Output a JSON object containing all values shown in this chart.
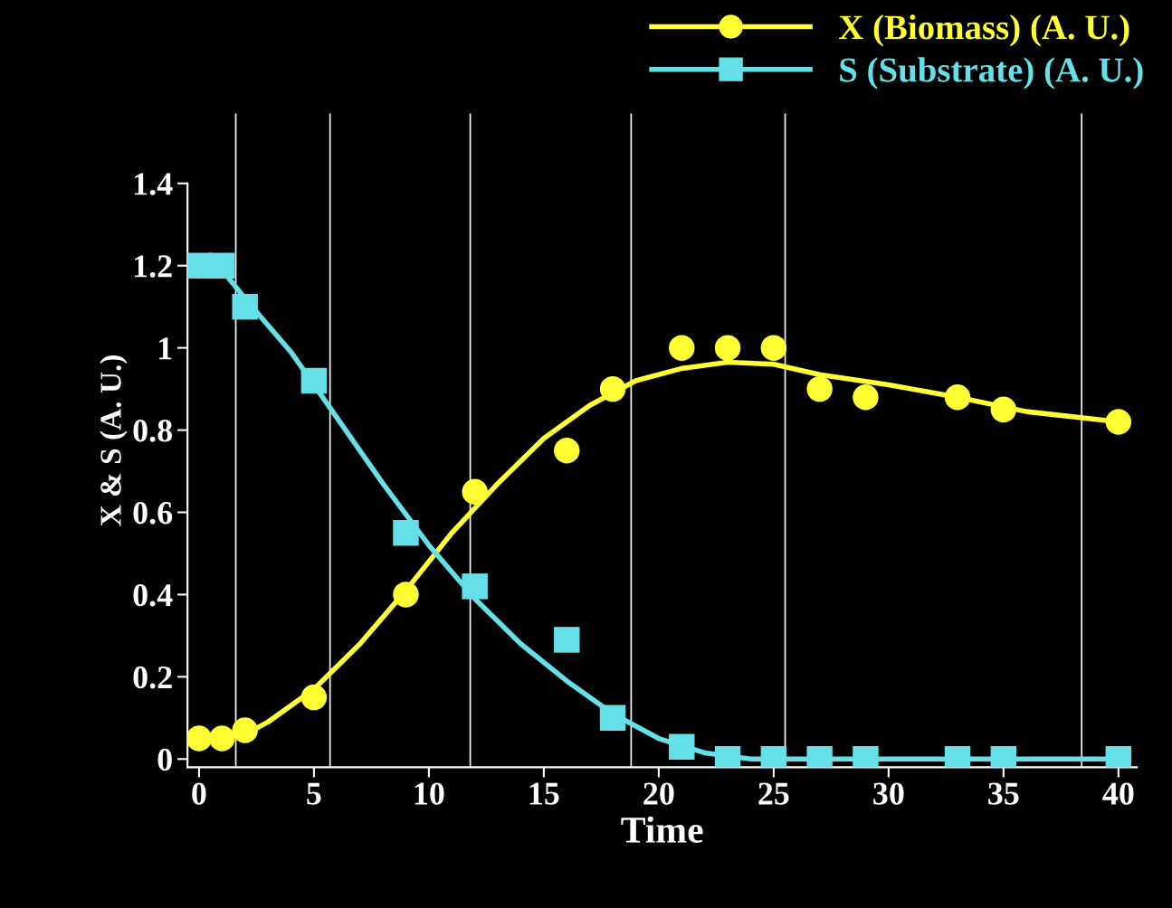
{
  "chart_data": {
    "type": "scatter",
    "xlabel": "Time",
    "ylabel": "X & S (A. U.)",
    "xlim": [
      -0.5,
      40.8
    ],
    "ylim": [
      -0.02,
      1.57
    ],
    "xticks": [
      0,
      5,
      10,
      15,
      20,
      25,
      30,
      35,
      40
    ],
    "yticks": [
      0,
      0.2,
      0.4,
      0.6,
      0.8,
      1,
      1.2,
      1.4
    ],
    "grid": false,
    "legend": "top",
    "series": [
      {
        "name": "X (Biomass) (A. U.)",
        "marker": "circle",
        "color": "#ffff33",
        "x": [
          0,
          1,
          2,
          5,
          9,
          12,
          16,
          18,
          21,
          23,
          25,
          27,
          29,
          33,
          35,
          40
        ],
        "values": [
          0.05,
          0.05,
          0.07,
          0.15,
          0.4,
          0.65,
          0.75,
          0.9,
          1.0,
          1.0,
          1.0,
          0.9,
          0.88,
          0.88,
          0.85,
          0.82
        ]
      },
      {
        "name": "S (Substrate) (A. U.)",
        "marker": "square",
        "color": "#66e0e8",
        "x": [
          0,
          1,
          2,
          5,
          9,
          12,
          16,
          18,
          21,
          23,
          25,
          27,
          29,
          33,
          35,
          40
        ],
        "values": [
          1.2,
          1.2,
          1.1,
          0.92,
          0.55,
          0.42,
          0.29,
          0.1,
          0.03,
          0,
          0,
          0,
          0,
          0,
          0,
          0
        ]
      },
      {
        "type": "line",
        "line_style": "solid",
        "color": "#ffff33",
        "x": [
          0,
          2,
          3,
          5,
          7,
          9,
          11,
          13,
          15,
          17,
          19,
          21,
          23,
          25,
          27,
          30,
          33,
          36,
          40
        ],
        "values": [
          0.05,
          0.06,
          0.09,
          0.17,
          0.28,
          0.41,
          0.55,
          0.67,
          0.78,
          0.86,
          0.92,
          0.95,
          0.965,
          0.96,
          0.935,
          0.91,
          0.88,
          0.845,
          0.82
        ]
      },
      {
        "type": "line",
        "line_style": "solid",
        "color": "#66e0e8",
        "x": [
          0,
          1,
          2,
          4,
          6,
          8,
          10,
          12,
          14,
          16,
          18,
          20,
          22,
          24,
          26,
          40
        ],
        "values": [
          1.2,
          1.19,
          1.12,
          0.99,
          0.83,
          0.67,
          0.52,
          0.39,
          0.28,
          0.19,
          0.11,
          0.05,
          0.015,
          0,
          0,
          0
        ]
      }
    ],
    "ref_lines": [
      {
        "axis": "x",
        "value": 1.6,
        "color": "#ffffff"
      },
      {
        "axis": "x",
        "value": 5.7,
        "color": "#ffffff"
      },
      {
        "axis": "x",
        "value": 11.8,
        "color": "#ffffff"
      },
      {
        "axis": "x",
        "value": 18.8,
        "color": "#ffffff"
      },
      {
        "axis": "x",
        "value": 25.5,
        "color": "#ffffff"
      },
      {
        "axis": "x",
        "value": 38.4,
        "color": "#ffffff"
      }
    ]
  }
}
